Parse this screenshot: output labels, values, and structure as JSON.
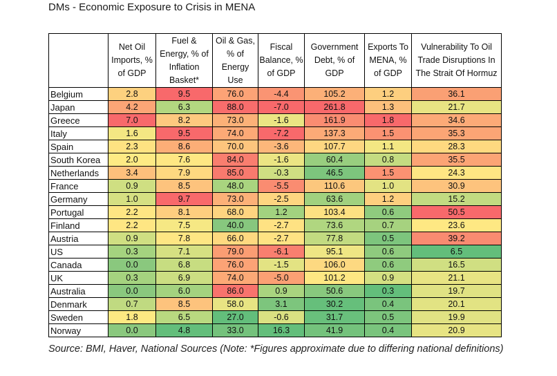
{
  "title": "DMs - Economic Exposure to Crisis in MENA",
  "source": "Source: BMI, Haver, National Sources (Note: *Figures approximate due to differing national definitions)",
  "chart_data": {
    "type": "table",
    "title": "DMs - Economic Exposure to Crisis in MENA",
    "columns": [
      "",
      "Net Oil Imports, % of GDP",
      "Fuel & Energy, % of Inflation Basket*",
      "Oil & Gas, % of Energy Use",
      "Fiscal Balance, % of GDP",
      "Government Debt, % of GDP",
      "Exports To MENA, % of GDP",
      "Vulnerability To Oil Trade Disruptions In The Strait Of Hormuz"
    ],
    "rows": [
      {
        "country": "Belgium",
        "values": [
          "2.8",
          "9.5",
          "76.0",
          "-4.4",
          "105.2",
          "1.2",
          "36.1"
        ],
        "colors": [
          "#fdd17f",
          "#f8696b",
          "#fca376",
          "#fa9473",
          "#fcb078",
          "#fdcf7f",
          "#faa074"
        ]
      },
      {
        "country": "Japan",
        "values": [
          "4.2",
          "6.3",
          "88.0",
          "-7.0",
          "261.8",
          "1.3",
          "21.7"
        ],
        "colors": [
          "#fba576",
          "#b3d780",
          "#f86d6c",
          "#f8696b",
          "#f8696b",
          "#fcc07c",
          "#e8e483"
        ]
      },
      {
        "country": "Greece",
        "values": [
          "7.0",
          "8.2",
          "73.0",
          "-1.6",
          "161.9",
          "1.8",
          "34.6"
        ],
        "colors": [
          "#f8696b",
          "#fec97f",
          "#fcb178",
          "#ebe583",
          "#fa8c71",
          "#f8696b",
          "#fcaa77"
        ]
      },
      {
        "country": "Italy",
        "values": [
          "1.6",
          "9.5",
          "74.0",
          "-7.2",
          "137.3",
          "1.5",
          "35.3"
        ],
        "colors": [
          "#f4e783",
          "#f8696b",
          "#fca976",
          "#f8696b",
          "#fcaa77",
          "#fb9272",
          "#fba575"
        ]
      },
      {
        "country": "Spain",
        "values": [
          "2.3",
          "8.6",
          "70.0",
          "-3.6",
          "107.7",
          "1.1",
          "28.3"
        ],
        "colors": [
          "#fee282",
          "#fcae77",
          "#fdc57d",
          "#fcb77a",
          "#fdd781",
          "#f3e783",
          "#fed980"
        ]
      },
      {
        "country": "South Korea",
        "values": [
          "2.0",
          "7.6",
          "84.0",
          "-1.6",
          "60.4",
          "0.8",
          "35.5"
        ],
        "colors": [
          "#feea84",
          "#fee783",
          "#f97e6f",
          "#ebe583",
          "#98ce7f",
          "#c4dc81",
          "#fba475"
        ]
      },
      {
        "country": "Netherlands",
        "values": [
          "3.4",
          "7.9",
          "85.0",
          "-0.3",
          "46.5",
          "1.5",
          "24.3"
        ],
        "colors": [
          "#fdc07c",
          "#fed880",
          "#f87a6e",
          "#cfdf82",
          "#7dc57d",
          "#fb9272",
          "#fee683"
        ]
      },
      {
        "country": "France",
        "values": [
          "0.9",
          "8.5",
          "48.0",
          "-5.5",
          "110.6",
          "1.0",
          "30.9"
        ],
        "colors": [
          "#cfdf82",
          "#fdc37d",
          "#a9d47f",
          "#fa8c71",
          "#fcc77d",
          "#e3e383",
          "#fdc37d"
        ]
      },
      {
        "country": "Germany",
        "values": [
          "1.0",
          "9.7",
          "73.0",
          "-2.5",
          "63.6",
          "1.2",
          "15.2"
        ],
        "colors": [
          "#d6e082",
          "#f8696b",
          "#fcb178",
          "#fed580",
          "#a1d17f",
          "#fdcf7f",
          "#c2db81"
        ]
      },
      {
        "country": "Portugal",
        "values": [
          "2.2",
          "8.1",
          "68.0",
          "1.2",
          "103.4",
          "0.6",
          "50.5"
        ],
        "colors": [
          "#fee683",
          "#fece7f",
          "#fed480",
          "#a2d27f",
          "#fde182",
          "#8fcb7e",
          "#f8696b"
        ]
      },
      {
        "country": "Finland",
        "values": [
          "2.2",
          "7.5",
          "40.0",
          "-2.7",
          "73.6",
          "0.7",
          "23.6"
        ],
        "colors": [
          "#fee683",
          "#f6e884",
          "#87c77e",
          "#fee283",
          "#b0d680",
          "#a6d27f",
          "#fee883"
        ]
      },
      {
        "country": "Austria",
        "values": [
          "0.9",
          "7.8",
          "66.0",
          "-2.7",
          "77.8",
          "0.5",
          "39.2"
        ],
        "colors": [
          "#cfdf82",
          "#fee683",
          "#fed980",
          "#fee283",
          "#c2db81",
          "#7dc57d",
          "#f98b71"
        ]
      },
      {
        "country": "US",
        "values": [
          "0.3",
          "7.1",
          "79.0",
          "-6.1",
          "95.1",
          "0.6",
          "6.5"
        ],
        "colors": [
          "#a5d37f",
          "#d6e082",
          "#fb9d73",
          "#f97f6f",
          "#efe684",
          "#8fcb7e",
          "#63be7b"
        ]
      },
      {
        "country": "Canada",
        "values": [
          "0.0",
          "6.8",
          "76.0",
          "-1.5",
          "106.0",
          "0.6",
          "16.5"
        ],
        "colors": [
          "#8ac87e",
          "#c7dd81",
          "#fca376",
          "#e3e383",
          "#fdd981",
          "#8fcb7e",
          "#d0df82"
        ]
      },
      {
        "country": "UK",
        "values": [
          "0.3",
          "6.9",
          "74.0",
          "-5.0",
          "101.2",
          "0.9",
          "21.1"
        ],
        "colors": [
          "#a5d37f",
          "#ccde82",
          "#fca976",
          "#fba074",
          "#fee783",
          "#d4e082",
          "#e8e483"
        ]
      },
      {
        "country": "Australia",
        "values": [
          "0.0",
          "6.0",
          "86.0",
          "0.9",
          "50.6",
          "0.3",
          "19.7"
        ],
        "colors": [
          "#8ac87e",
          "#a4d27f",
          "#f8736d",
          "#a9d47f",
          "#88c87e",
          "#63be7b",
          "#e0e283"
        ]
      },
      {
        "country": "Denmark",
        "values": [
          "0.7",
          "8.5",
          "58.0",
          "3.1",
          "30.2",
          "0.4",
          "20.1"
        ],
        "colors": [
          "#c0da81",
          "#fdc37d",
          "#e8e483",
          "#7dc57d",
          "#66bf7b",
          "#7ac47d",
          "#e2e383"
        ]
      },
      {
        "country": "Sweden",
        "values": [
          "1.8",
          "6.5",
          "27.0",
          "-0.6",
          "31.7",
          "0.5",
          "19.9"
        ],
        "colors": [
          "#fde982",
          "#b9d980",
          "#63be7b",
          "#dae182",
          "#69c07c",
          "#7dc57d",
          "#e1e283"
        ]
      },
      {
        "country": "Norway",
        "values": [
          "0.0",
          "4.8",
          "33.0",
          "16.3",
          "41.9",
          "0.4",
          "20.9"
        ],
        "colors": [
          "#8ac87e",
          "#63be7b",
          "#74c27c",
          "#63be7b",
          "#74c27c",
          "#7ac47d",
          "#e7e483"
        ]
      }
    ]
  }
}
